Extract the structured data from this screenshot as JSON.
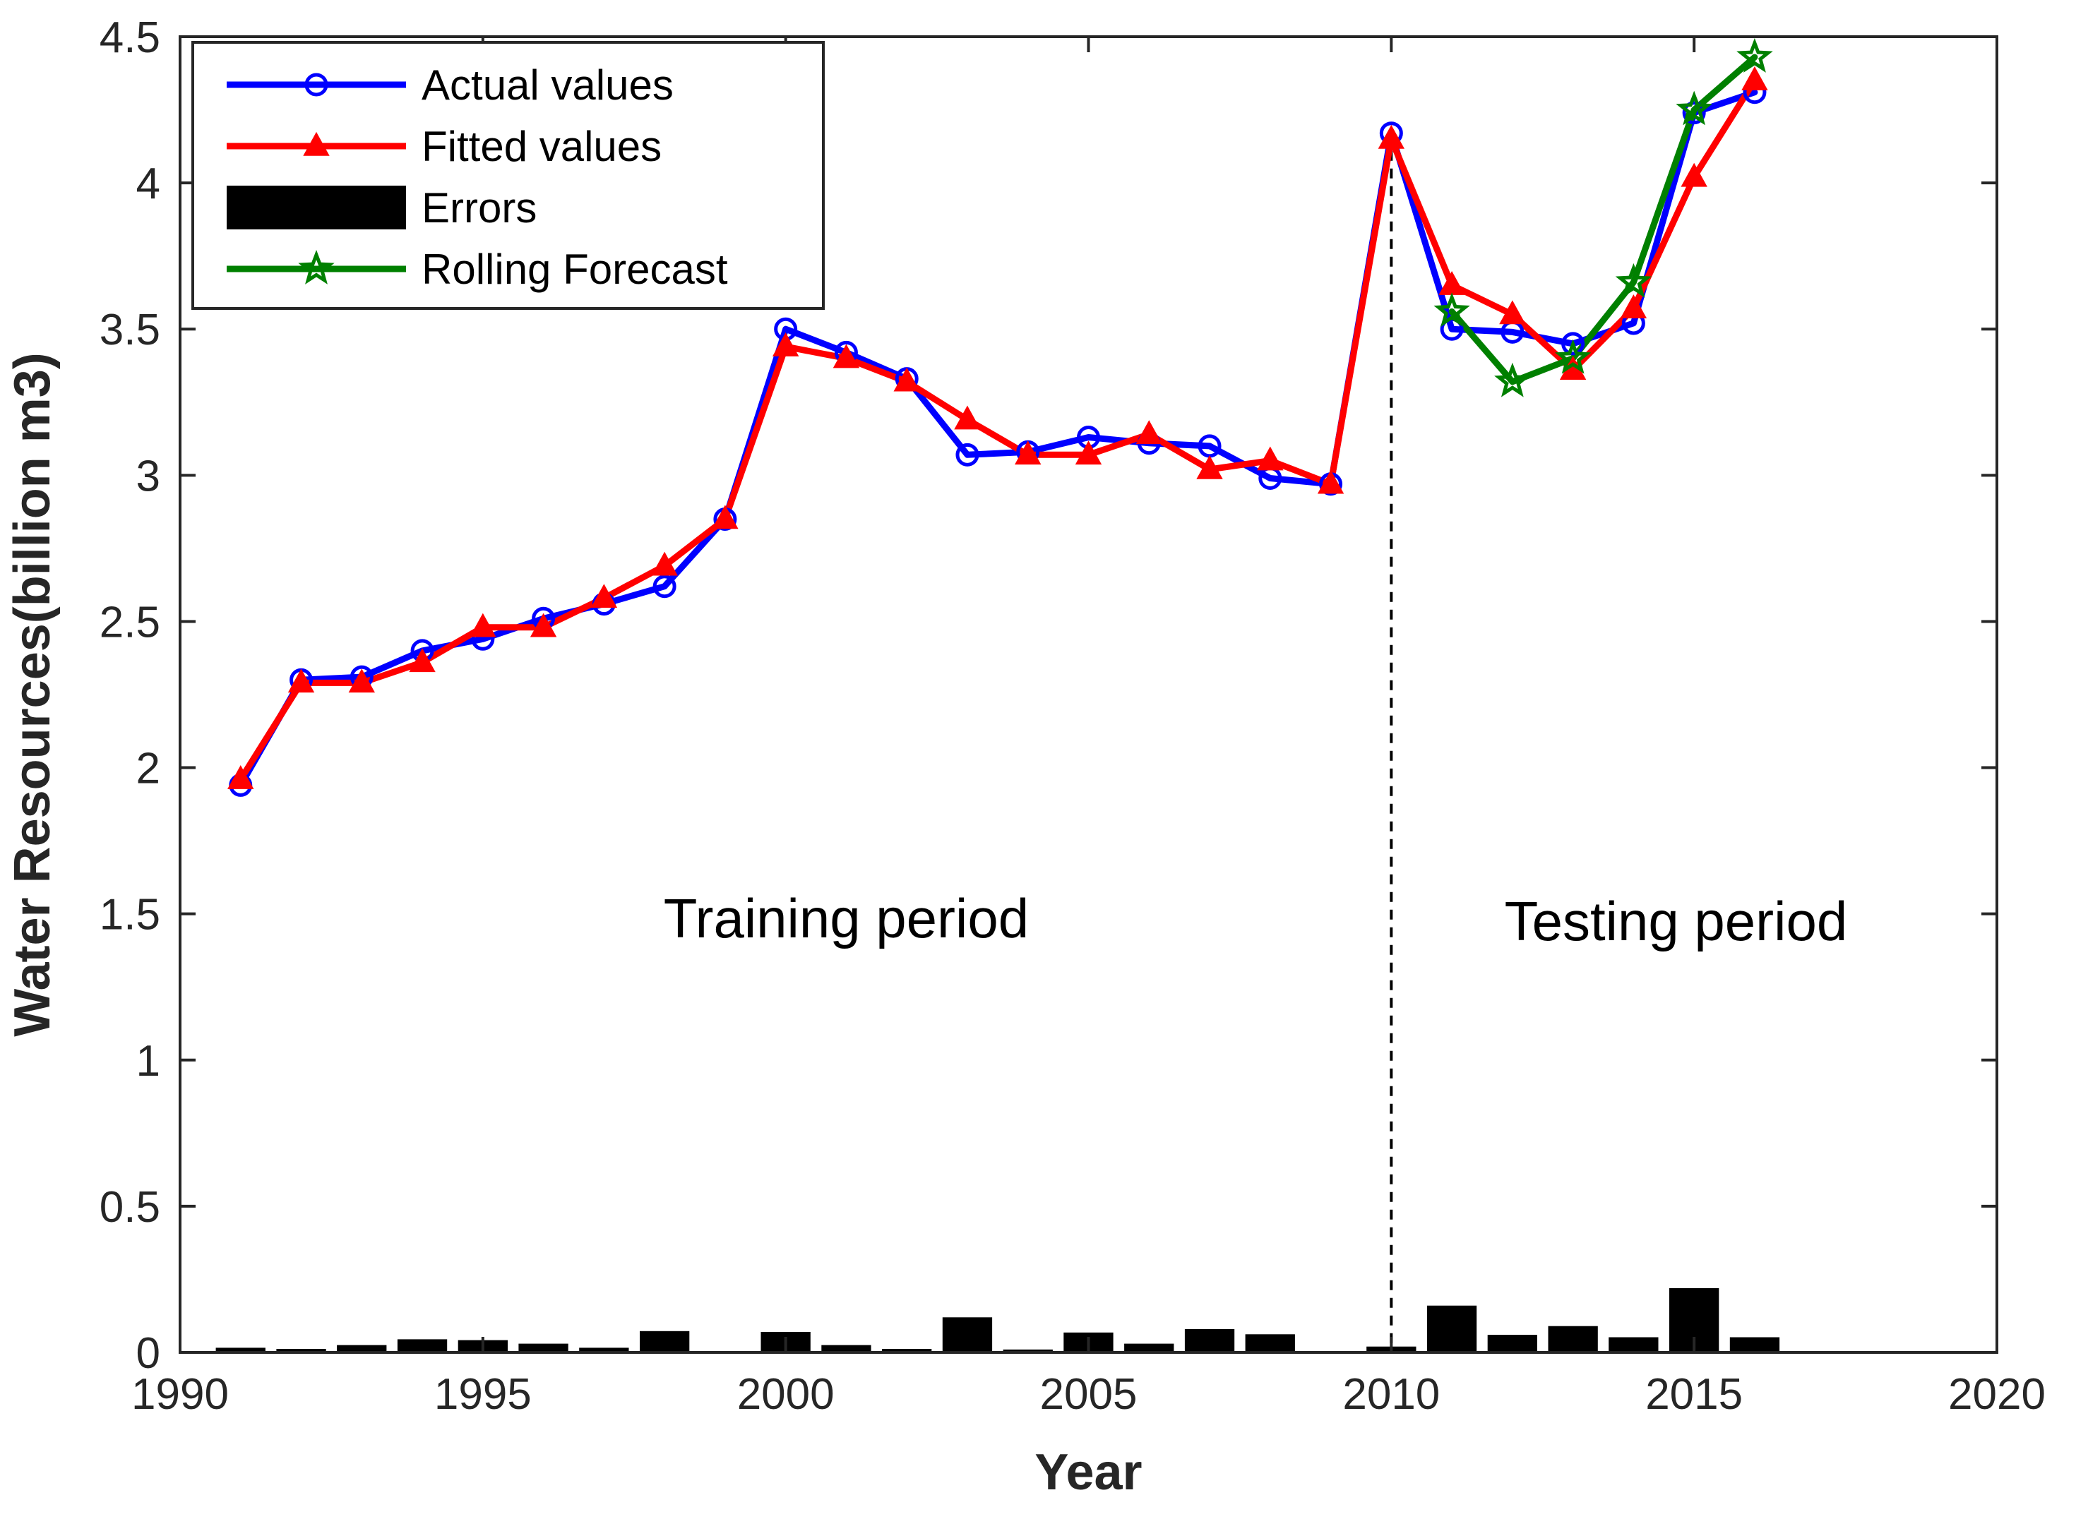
{
  "chart_data": {
    "type": "line",
    "title": "",
    "xlabel": "Year",
    "ylabel": "Water Resources(billion m3)",
    "xlim": [
      1990,
      2020
    ],
    "ylim": [
      0,
      4.5
    ],
    "xticks": [
      1990,
      1995,
      2000,
      2005,
      2010,
      2015,
      2020
    ],
    "xtick_labels": [
      "1990",
      "1995",
      "2000",
      "2005",
      "2010",
      "2015",
      "2020"
    ],
    "yticks": [
      0,
      0.5,
      1,
      1.5,
      2,
      2.5,
      3,
      3.5,
      4,
      4.5
    ],
    "ytick_labels": [
      "0",
      "0.5",
      "1",
      "1.5",
      "2",
      "2.5",
      "3",
      "3.5",
      "4",
      "4.5"
    ],
    "grid": false,
    "legend_position": "top-left",
    "series": [
      {
        "name": "Actual values",
        "kind": "line",
        "marker": "circle",
        "color": "#0000ff",
        "x": [
          1991,
          1992,
          1993,
          1994,
          1995,
          1996,
          1997,
          1998,
          1999,
          2000,
          2001,
          2002,
          2003,
          2004,
          2005,
          2006,
          2007,
          2008,
          2009,
          2010,
          2011,
          2012,
          2013,
          2014,
          2015,
          2016
        ],
        "values": [
          1.94,
          2.3,
          2.31,
          2.4,
          2.44,
          2.51,
          2.56,
          2.62,
          2.85,
          3.5,
          3.42,
          3.33,
          3.07,
          3.08,
          3.13,
          3.11,
          3.1,
          2.99,
          2.97,
          4.17,
          3.5,
          3.49,
          3.45,
          3.52,
          4.24,
          4.31
        ]
      },
      {
        "name": "Fitted values",
        "kind": "line",
        "marker": "triangle",
        "color": "#ff0000",
        "x": [
          1991,
          1992,
          1993,
          1994,
          1995,
          1996,
          1997,
          1998,
          1999,
          2000,
          2001,
          2002,
          2003,
          2004,
          2005,
          2006,
          2007,
          2008,
          2009,
          2010,
          2011,
          2012,
          2013,
          2014,
          2015,
          2016
        ],
        "values": [
          1.96,
          2.29,
          2.29,
          2.36,
          2.48,
          2.48,
          2.58,
          2.69,
          2.85,
          3.44,
          3.4,
          3.32,
          3.19,
          3.07,
          3.07,
          3.14,
          3.02,
          3.05,
          2.97,
          4.15,
          3.65,
          3.55,
          3.36,
          3.57,
          4.02,
          4.35
        ]
      },
      {
        "name": "Errors",
        "kind": "bar",
        "color": "#000000",
        "x": [
          1991,
          1992,
          1993,
          1994,
          1995,
          1996,
          1997,
          1998,
          1999,
          2000,
          2001,
          2002,
          2003,
          2004,
          2005,
          2006,
          2007,
          2008,
          2009,
          2010,
          2011,
          2012,
          2013,
          2014,
          2015,
          2016
        ],
        "values": [
          0.016,
          0.012,
          0.025,
          0.045,
          0.042,
          0.03,
          0.016,
          0.073,
          0.004,
          0.07,
          0.025,
          0.012,
          0.12,
          0.01,
          0.068,
          0.03,
          0.08,
          0.062,
          0.004,
          0.02,
          0.16,
          0.06,
          0.09,
          0.052,
          0.22,
          0.052
        ]
      },
      {
        "name": "Rolling Forecast",
        "kind": "line",
        "marker": "star",
        "color": "#008000",
        "x": [
          2011,
          2012,
          2013,
          2014,
          2015,
          2016
        ],
        "values": [
          3.56,
          3.32,
          3.4,
          3.66,
          4.25,
          4.43
        ]
      }
    ],
    "annotations": [
      {
        "text": "Training period",
        "x": 2001.0,
        "y": 1.42
      },
      {
        "text": "Testing period",
        "x": 2014.7,
        "y": 1.41
      }
    ],
    "vline": {
      "x": 2010,
      "style": "dashed",
      "color": "#000000"
    }
  }
}
